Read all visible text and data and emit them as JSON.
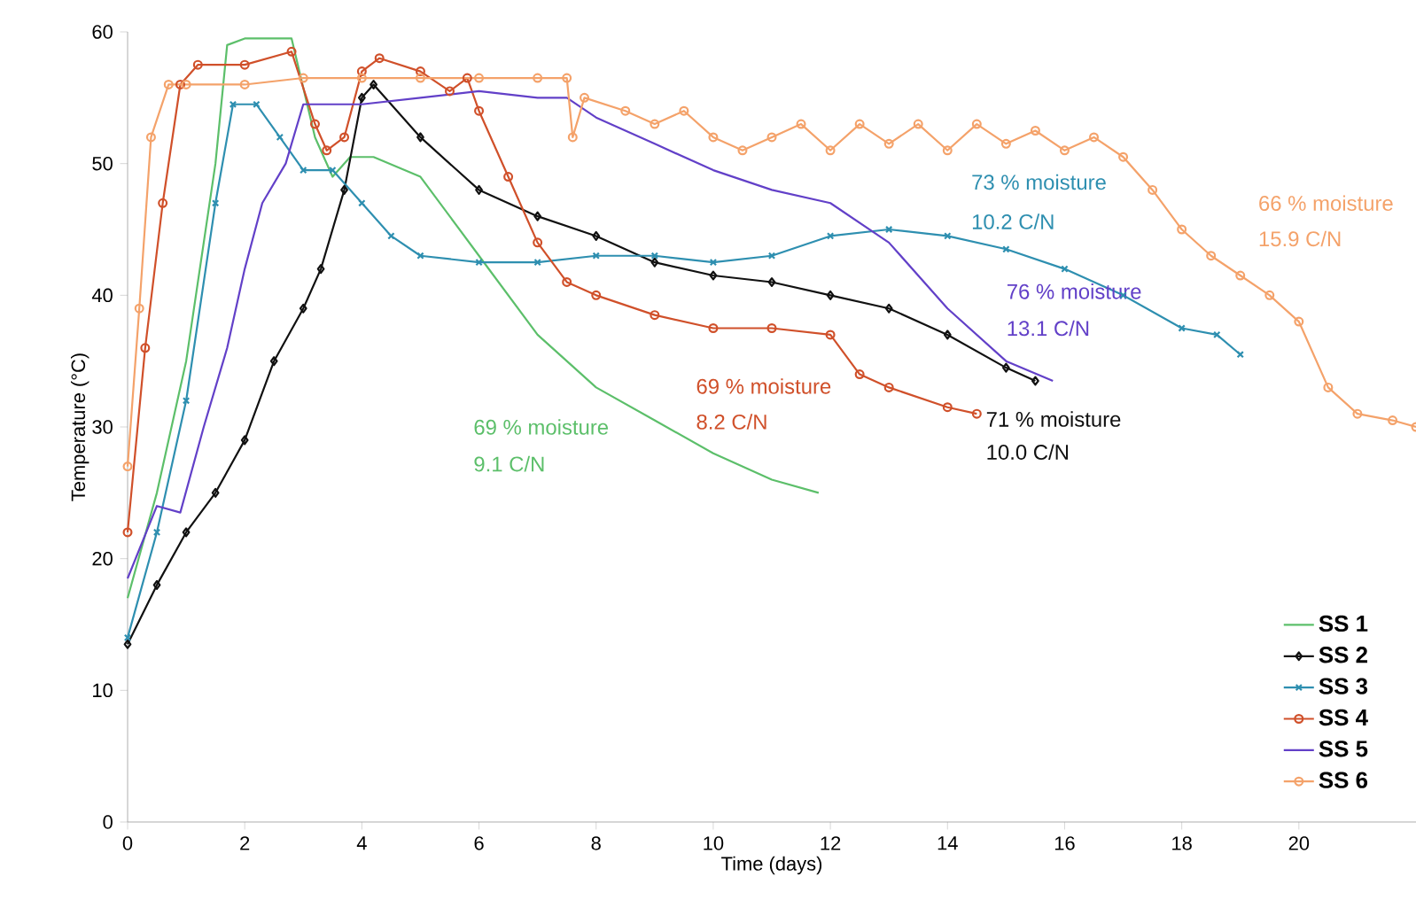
{
  "chart_data": {
    "type": "line",
    "xlabel": "Time (days)",
    "ylabel": "Temperature (°C)",
    "xlim": [
      0,
      22
    ],
    "ylim": [
      0,
      60
    ],
    "xticks": [
      0,
      2,
      4,
      6,
      8,
      10,
      12,
      14,
      16,
      18,
      20
    ],
    "yticks": [
      0,
      10,
      20,
      30,
      40,
      50,
      60
    ],
    "grid": false,
    "legend": "bottom right",
    "line_style": "solid",
    "series": [
      {
        "name": "SS 1",
        "color": "#5cbf6a",
        "marker": "none",
        "x": [
          0,
          0.5,
          1,
          1.5,
          1.7,
          2,
          2.8,
          3.2,
          3.5,
          3.8,
          4.2,
          5,
          6,
          7,
          8,
          9,
          10,
          11,
          11.8
        ],
        "values": [
          17,
          25,
          35,
          50,
          59,
          59.5,
          59.5,
          52,
          49,
          50.5,
          50.5,
          49,
          43,
          37,
          33,
          30.5,
          28,
          26,
          25
        ]
      },
      {
        "name": "SS 2",
        "color": "#111111",
        "marker": "diamond",
        "x": [
          0,
          0.5,
          1,
          1.5,
          2,
          2.5,
          3,
          3.3,
          3.7,
          4,
          4.2,
          5,
          6,
          7,
          8,
          9,
          10,
          11,
          12,
          13,
          14,
          15,
          15.5
        ],
        "values": [
          13.5,
          18,
          22,
          25,
          29,
          35,
          39,
          42,
          48,
          55,
          56,
          52,
          48,
          46,
          44.5,
          42.5,
          41.5,
          41,
          40,
          39,
          37,
          34.5,
          33.5
        ]
      },
      {
        "name": "SS 3",
        "color": "#2e8fb0",
        "marker": "cross",
        "x": [
          0,
          0.5,
          1,
          1.5,
          1.8,
          2.2,
          2.6,
          3,
          3.5,
          4,
          4.5,
          5,
          6,
          7,
          8,
          9,
          10,
          11,
          12,
          13,
          14,
          15,
          16,
          17,
          18,
          18.6,
          19
        ],
        "values": [
          14,
          22,
          32,
          47,
          54.5,
          54.5,
          52,
          49.5,
          49.5,
          47,
          44.5,
          43,
          42.5,
          42.5,
          43,
          43,
          42.5,
          43,
          44.5,
          45,
          44.5,
          43.5,
          42,
          40,
          37.5,
          37,
          35.5
        ]
      },
      {
        "name": "SS 4",
        "color": "#d0502a",
        "marker": "circle",
        "x": [
          0,
          0.3,
          0.6,
          0.9,
          1.2,
          2,
          2.8,
          3.2,
          3.4,
          3.7,
          4,
          4.3,
          5,
          5.5,
          5.8,
          6,
          6.5,
          7,
          7.5,
          8,
          9,
          10,
          11,
          12,
          12.5,
          13,
          14,
          14.5
        ],
        "values": [
          22,
          36,
          47,
          56,
          57.5,
          57.5,
          58.5,
          53,
          51,
          52,
          57,
          58,
          57,
          55.5,
          56.5,
          54,
          49,
          44,
          41,
          40,
          38.5,
          37.5,
          37.5,
          37,
          34,
          33,
          31.5,
          31
        ]
      },
      {
        "name": "SS 5",
        "color": "#6240c8",
        "marker": "none",
        "x": [
          0,
          0.5,
          0.9,
          1.3,
          1.7,
          2,
          2.3,
          2.7,
          3,
          4,
          5,
          6,
          7,
          7.5,
          8,
          9,
          10,
          11,
          12,
          13,
          14,
          15,
          15.8
        ],
        "values": [
          18.5,
          24,
          23.5,
          30,
          36,
          42,
          47,
          50,
          54.5,
          54.5,
          55,
          55.5,
          55,
          55,
          53.5,
          51.5,
          49.5,
          48,
          47,
          44,
          39,
          35,
          33.5
        ]
      },
      {
        "name": "SS 6",
        "color": "#f4a26a",
        "marker": "circle",
        "x": [
          0,
          0.2,
          0.4,
          0.7,
          1,
          2,
          3,
          4,
          5,
          6,
          7,
          7.5,
          7.6,
          7.8,
          8.5,
          9,
          9.5,
          10,
          10.5,
          11,
          11.5,
          12,
          12.5,
          13,
          13.5,
          14,
          14.5,
          15,
          15.5,
          16,
          16.5,
          17,
          17.5,
          18,
          18.5,
          19,
          19.5,
          20,
          20.5,
          21,
          21.6,
          22
        ],
        "values": [
          27,
          39,
          52,
          56,
          56,
          56,
          56.5,
          56.5,
          56.5,
          56.5,
          56.5,
          56.5,
          52,
          55,
          54,
          53,
          54,
          52,
          51,
          52,
          53,
          51,
          53,
          51.5,
          53,
          51,
          53,
          51.5,
          52.5,
          51,
          52,
          50.5,
          48,
          45,
          43,
          41.5,
          40,
          38,
          33,
          31,
          30.5,
          30
        ]
      }
    ],
    "annotations": [
      "69 % moisture",
      "9.1 C/N",
      "71 % moisture",
      "10.0 C/N",
      "73 % moisture",
      "10.2 C/N",
      "69 % moisture",
      "8.2 C/N",
      "76 % moisture",
      "13.1 C/N",
      "66 % moisture",
      "15.9 C/N"
    ]
  }
}
